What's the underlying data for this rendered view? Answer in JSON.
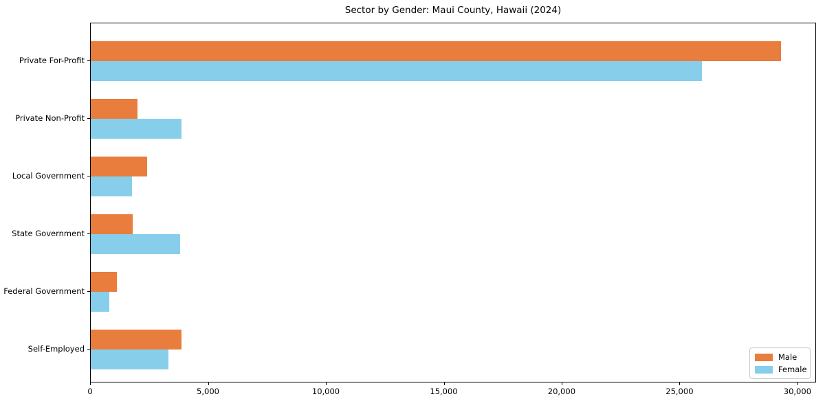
{
  "title": "Sector by Gender: Maui County, Hawaii (2024)",
  "chart_data": {
    "type": "bar",
    "orientation": "horizontal",
    "title": "Sector by Gender: Maui County, Hawaii (2024)",
    "categories": [
      "Private For-Profit",
      "Private Non-Profit",
      "Local Government",
      "State Government",
      "Federal Government",
      "Self-Employed"
    ],
    "series": [
      {
        "name": "Male",
        "color": "#e87d3e",
        "values": [
          29270,
          1990,
          2390,
          1780,
          1110,
          3840
        ]
      },
      {
        "name": "Female",
        "color": "#87ceeb",
        "values": [
          25920,
          3840,
          1740,
          3780,
          790,
          3290
        ]
      }
    ],
    "xlabel": "",
    "ylabel": "",
    "xlim": [
      0,
      30790
    ],
    "xticks": [
      0,
      5000,
      10000,
      15000,
      20000,
      25000,
      30000
    ],
    "xticklabels": [
      "0",
      "5,000",
      "10,000",
      "15,000",
      "20,000",
      "25,000",
      "30,000"
    ],
    "grid": false,
    "legend_position": "lower right"
  }
}
